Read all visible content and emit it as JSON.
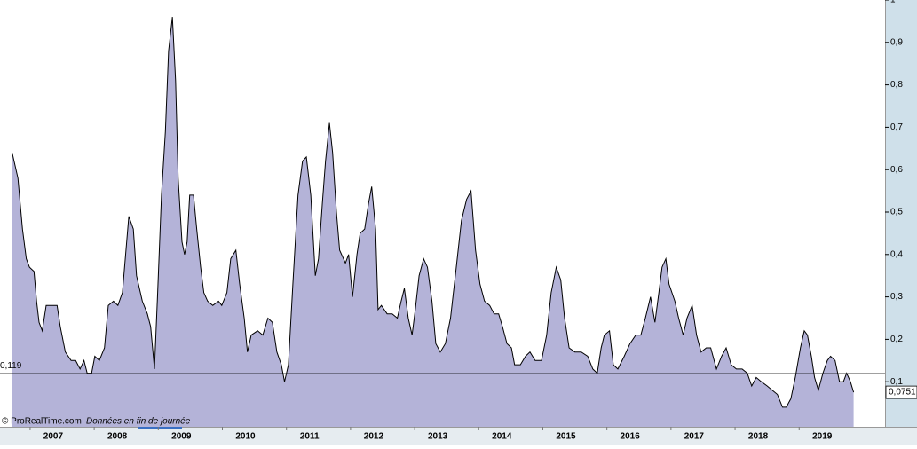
{
  "chart_data": {
    "type": "area",
    "source": "© ProRealTime.com",
    "note": "Données en fin de journée",
    "x": [
      2006.36,
      2006.45,
      2006.52,
      2006.58,
      2006.63,
      2006.7,
      2006.74,
      2006.78,
      2006.83,
      2006.89,
      2006.97,
      2007.06,
      2007.11,
      2007.19,
      2007.28,
      2007.35,
      2007.42,
      2007.48,
      2007.53,
      2007.6,
      2007.65,
      2007.72,
      2007.8,
      2007.86,
      2007.94,
      2008.01,
      2008.08,
      2008.18,
      2008.25,
      2008.3,
      2008.39,
      2008.47,
      2008.52,
      2008.58,
      2008.63,
      2008.69,
      2008.75,
      2008.8,
      2008.86,
      2008.91,
      2008.95,
      2009.01,
      2009.05,
      2009.09,
      2009.13,
      2009.19,
      2009.24,
      2009.3,
      2009.35,
      2009.41,
      2009.49,
      2009.58,
      2009.63,
      2009.71,
      2009.77,
      2009.85,
      2009.91,
      2009.98,
      2010.03,
      2010.09,
      2010.19,
      2010.27,
      2010.35,
      2010.42,
      2010.49,
      2010.56,
      2010.61,
      2010.67,
      2010.74,
      2010.82,
      2010.89,
      2010.95,
      2011.02,
      2011.09,
      2011.14,
      2011.2,
      2011.25,
      2011.31,
      2011.36,
      2011.42,
      2011.47,
      2011.56,
      2011.61,
      2011.67,
      2011.74,
      2011.79,
      2011.86,
      2011.92,
      2011.97,
      2012.03,
      2012.07,
      2012.12,
      2012.21,
      2012.29,
      2012.37,
      2012.43,
      2012.48,
      2012.54,
      2012.6,
      2012.65,
      2012.71,
      2012.78,
      2012.84,
      2012.91,
      2012.97,
      2013.04,
      2013.12,
      2013.2,
      2013.29,
      2013.37,
      2013.45,
      2013.52,
      2013.59,
      2013.66,
      2013.73,
      2013.81,
      2013.88,
      2013.95,
      2014.01,
      2014.08,
      2014.15,
      2014.2,
      2014.29,
      2014.37,
      2014.44,
      2014.52,
      2014.62,
      2014.7,
      2014.77,
      2014.85,
      2014.92,
      2014.98,
      2015.05,
      2015.14,
      2015.24,
      2015.34,
      2015.42,
      2015.49,
      2015.55,
      2015.6,
      2015.68,
      2015.74,
      2015.81,
      2015.91,
      2016.0,
      2016.09,
      2016.17,
      2016.24,
      2016.32,
      2016.39,
      2016.45,
      2016.5,
      2016.56,
      2016.61,
      2016.7,
      2016.76,
      2016.83,
      2016.89,
      2016.97,
      2017.04,
      2017.11,
      2017.19,
      2017.26,
      2017.35,
      2017.43,
      2017.5,
      2017.58,
      2017.66,
      2017.75,
      2017.83,
      2017.9,
      2017.97,
      2018.05,
      2018.14,
      2018.22,
      2018.3,
      2018.38,
      2018.44,
      2018.51,
      2018.58,
      2018.66,
      2018.72,
      2018.77,
      2018.83,
      2018.88,
      2018.94,
      2019.01,
      2019.08,
      2019.13,
      2019.2,
      2019.27,
      2019.33,
      2019.38,
      2019.44,
      2019.49
    ],
    "series": [
      {
        "color": "#b4b3d8",
        "values": [
          0.64,
          0.58,
          0.46,
          0.39,
          0.37,
          0.36,
          0.29,
          0.24,
          0.22,
          0.28,
          0.28,
          0.28,
          0.23,
          0.17,
          0.15,
          0.15,
          0.13,
          0.15,
          0.12,
          0.12,
          0.16,
          0.15,
          0.18,
          0.28,
          0.29,
          0.28,
          0.31,
          0.49,
          0.46,
          0.35,
          0.29,
          0.26,
          0.23,
          0.13,
          0.31,
          0.54,
          0.69,
          0.88,
          0.96,
          0.81,
          0.58,
          0.43,
          0.4,
          0.43,
          0.54,
          0.54,
          0.46,
          0.37,
          0.31,
          0.29,
          0.28,
          0.29,
          0.28,
          0.31,
          0.39,
          0.41,
          0.33,
          0.25,
          0.17,
          0.21,
          0.22,
          0.21,
          0.25,
          0.24,
          0.17,
          0.14,
          0.1,
          0.14,
          0.33,
          0.54,
          0.62,
          0.63,
          0.54,
          0.35,
          0.39,
          0.52,
          0.62,
          0.71,
          0.64,
          0.5,
          0.41,
          0.38,
          0.4,
          0.3,
          0.4,
          0.45,
          0.46,
          0.52,
          0.56,
          0.46,
          0.27,
          0.28,
          0.26,
          0.26,
          0.25,
          0.29,
          0.32,
          0.25,
          0.21,
          0.27,
          0.35,
          0.39,
          0.37,
          0.29,
          0.19,
          0.17,
          0.19,
          0.25,
          0.37,
          0.48,
          0.53,
          0.55,
          0.41,
          0.33,
          0.29,
          0.28,
          0.26,
          0.26,
          0.23,
          0.19,
          0.18,
          0.14,
          0.14,
          0.16,
          0.17,
          0.15,
          0.15,
          0.21,
          0.31,
          0.37,
          0.34,
          0.25,
          0.18,
          0.17,
          0.17,
          0.16,
          0.13,
          0.12,
          0.18,
          0.21,
          0.22,
          0.14,
          0.13,
          0.16,
          0.19,
          0.21,
          0.21,
          0.25,
          0.3,
          0.24,
          0.31,
          0.37,
          0.39,
          0.33,
          0.29,
          0.25,
          0.21,
          0.25,
          0.28,
          0.21,
          0.17,
          0.18,
          0.18,
          0.13,
          0.16,
          0.18,
          0.14,
          0.13,
          0.13,
          0.12,
          0.09,
          0.11,
          0.1,
          0.09,
          0.08,
          0.07,
          0.04,
          0.04,
          0.06,
          0.11,
          0.18,
          0.22,
          0.21,
          0.16,
          0.11,
          0.08,
          0.12,
          0.15,
          0.16,
          0.15,
          0.1,
          0.1,
          0.12,
          0.1,
          0.0751
        ]
      }
    ],
    "last_value_label": "0,0751",
    "reference_line": {
      "value": 0.119,
      "label": "0,119"
    },
    "xlim": [
      2006.17,
      2019.98
    ],
    "xticks": [
      2007,
      2008,
      2009,
      2010,
      2011,
      2012,
      2013,
      2014,
      2015,
      2016,
      2017,
      2018,
      2019
    ],
    "ylim": [
      0,
      1
    ],
    "yticks": [
      {
        "value": 0.1,
        "label": "0,1"
      },
      {
        "value": 0.2,
        "label": "0,2"
      },
      {
        "value": 0.3,
        "label": "0,3"
      },
      {
        "value": 0.4,
        "label": "0,4"
      },
      {
        "value": 0.5,
        "label": "0,5"
      },
      {
        "value": 0.6,
        "label": "0,6"
      },
      {
        "value": 0.7,
        "label": "0,7"
      },
      {
        "value": 0.8,
        "label": "0,8"
      },
      {
        "value": 0.9,
        "label": "0,9"
      },
      {
        "value": 1,
        "label": "1"
      }
    ]
  }
}
